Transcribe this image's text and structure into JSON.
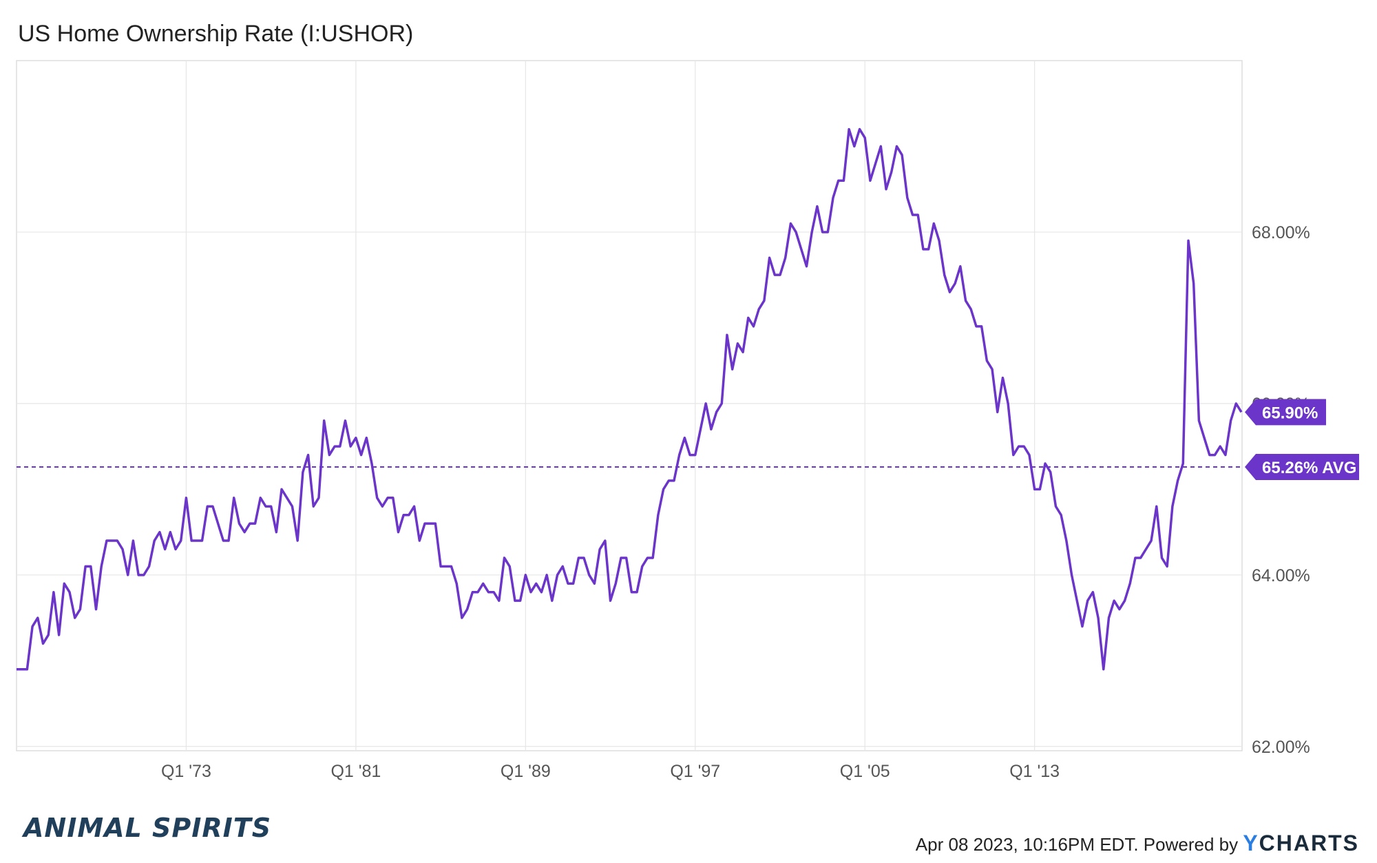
{
  "chart_data": {
    "type": "line",
    "title": "US Home Ownership Rate (I:USHOR)",
    "xlabel": "",
    "ylabel": "",
    "x_ticks": [
      "Q1 '73",
      "Q1 '81",
      "Q1 '89",
      "Q1 '97",
      "Q1 '05",
      "Q1 '13"
    ],
    "y_ticks": [
      "62.00%",
      "64.00%",
      "66.00%",
      "68.00%"
    ],
    "ylim": [
      61.95,
      70.0
    ],
    "x_start": "Q1 '65",
    "x_end": "Q4 '22",
    "x_frequency": "quarterly",
    "grid": true,
    "color": "#6a35c8",
    "series": [
      {
        "values": [
          62.9,
          62.9,
          62.9,
          63.4,
          63.5,
          63.2,
          63.3,
          63.8,
          63.3,
          63.9,
          63.8,
          63.5,
          63.6,
          64.1,
          64.1,
          63.6,
          64.1,
          64.4,
          64.4,
          64.4,
          64.3,
          64.0,
          64.4,
          64.0,
          64.0,
          64.1,
          64.4,
          64.5,
          64.3,
          64.5,
          64.3,
          64.4,
          64.9,
          64.4,
          64.4,
          64.4,
          64.8,
          64.8,
          64.6,
          64.4,
          64.4,
          64.9,
          64.6,
          64.5,
          64.6,
          64.6,
          64.9,
          64.8,
          64.8,
          64.5,
          65.0,
          64.9,
          64.8,
          64.4,
          65.2,
          65.4,
          64.8,
          64.9,
          65.8,
          65.4,
          65.5,
          65.5,
          65.8,
          65.5,
          65.6,
          65.4,
          65.6,
          65.3,
          64.9,
          64.8,
          64.9,
          64.9,
          64.5,
          64.7,
          64.7,
          64.8,
          64.4,
          64.6,
          64.6,
          64.6,
          64.1,
          64.1,
          64.1,
          63.9,
          63.5,
          63.6,
          63.8,
          63.8,
          63.9,
          63.8,
          63.8,
          63.7,
          64.2,
          64.1,
          63.7,
          63.7,
          64.0,
          63.8,
          63.9,
          63.8,
          64.0,
          63.7,
          64.0,
          64.1,
          63.9,
          63.9,
          64.2,
          64.2,
          64.0,
          63.9,
          64.3,
          64.4,
          63.7,
          63.9,
          64.2,
          64.2,
          63.8,
          63.8,
          64.1,
          64.2,
          64.2,
          64.7,
          65.0,
          65.1,
          65.1,
          65.4,
          65.6,
          65.4,
          65.4,
          65.7,
          66.0,
          65.7,
          65.9,
          66.0,
          66.8,
          66.4,
          66.7,
          66.6,
          67.0,
          66.9,
          67.1,
          67.2,
          67.7,
          67.5,
          67.5,
          67.7,
          68.1,
          68.0,
          67.8,
          67.6,
          68.0,
          68.3,
          68.0,
          68.0,
          68.4,
          68.6,
          68.6,
          69.2,
          69.0,
          69.2,
          69.1,
          68.6,
          68.8,
          69.0,
          68.5,
          68.7,
          69.0,
          68.9,
          68.4,
          68.2,
          68.2,
          67.8,
          67.8,
          68.1,
          67.9,
          67.5,
          67.3,
          67.4,
          67.6,
          67.2,
          67.1,
          66.9,
          66.9,
          66.5,
          66.4,
          65.9,
          66.3,
          66.0,
          65.4,
          65.5,
          65.5,
          65.4,
          65.0,
          65.0,
          65.3,
          65.2,
          64.8,
          64.7,
          64.4,
          64.0,
          63.7,
          63.4,
          63.7,
          63.8,
          63.5,
          62.9,
          63.5,
          63.7,
          63.6,
          63.7,
          63.9,
          64.2,
          64.2,
          64.3,
          64.4,
          64.8,
          64.2,
          64.1,
          64.8,
          65.1,
          65.3,
          67.9,
          67.4,
          65.8,
          65.6,
          65.4,
          65.4,
          65.5,
          65.4,
          65.8,
          66.0,
          65.9
        ]
      }
    ],
    "current_value_label": "65.90%",
    "average_value": 65.26,
    "average_label": "65.26% AVG"
  },
  "footer": {
    "timestamp": "Apr 08 2023, 10:16PM EDT.",
    "powered_by": "Powered by",
    "brand_y": "Y",
    "brand_rest": "CHARTS"
  },
  "logo_text": "ANIMAL SPIRITS"
}
